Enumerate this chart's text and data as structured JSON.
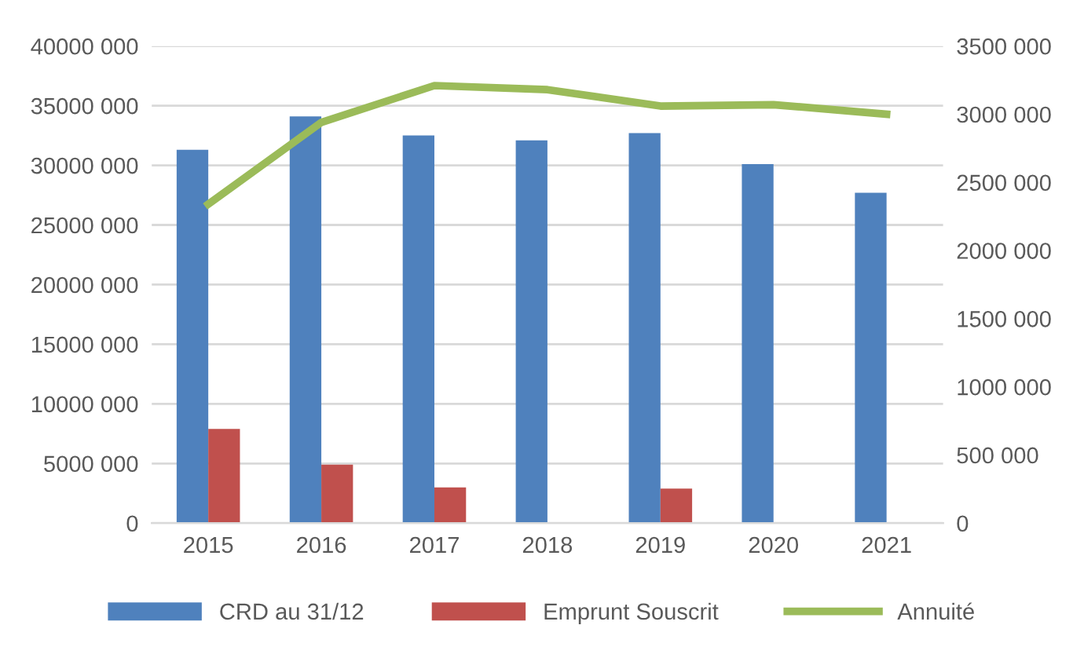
{
  "chart_data": {
    "type": "bar",
    "categories": [
      "2015",
      "2016",
      "2017",
      "2018",
      "2019",
      "2020",
      "2021"
    ],
    "series": [
      {
        "name": "CRD au 31/12",
        "color": "#4f81bd",
        "values": [
          31300000,
          34100000,
          32500000,
          32100000,
          32700000,
          30100000,
          27700000
        ]
      },
      {
        "name": "Emprunt Souscrit",
        "color": "#c0504d",
        "values": [
          7900000,
          4900000,
          3000000,
          null,
          2900000,
          null,
          null
        ]
      },
      {
        "name": "Annuité",
        "type": "line",
        "axis": "y2",
        "color": "#9bbb59",
        "values": [
          2340000,
          2940000,
          3210000,
          3180000,
          3060000,
          3070000,
          3000000
        ]
      }
    ],
    "ylim": [
      0,
      40000000
    ],
    "yticks": [
      0,
      {
        "value": 5000000,
        "label": "5000 000"
      },
      {
        "value": 10000000,
        "label": "10000 000"
      },
      {
        "value": 15000000,
        "label": "15000 000"
      },
      {
        "value": 20000000,
        "label": "20000 000"
      },
      {
        "value": 25000000,
        "label": "25000 000"
      },
      {
        "value": 30000000,
        "label": "30000 000"
      },
      {
        "value": 35000000,
        "label": "35000 000"
      },
      {
        "value": 40000000,
        "label": "40000 000"
      }
    ],
    "y2lim": [
      0,
      3500000
    ],
    "y2ticks": [
      0,
      {
        "value": 500000,
        "label": "500 000"
      },
      {
        "value": 1000000,
        "label": "1000 000"
      },
      {
        "value": 1500000,
        "label": "1500 000"
      },
      {
        "value": 2000000,
        "label": "2000 000"
      },
      {
        "value": 2500000,
        "label": "2500 000"
      },
      {
        "value": 3000000,
        "label": "3000 000"
      },
      {
        "value": 3500000,
        "label": "3500 000"
      }
    ],
    "grid": "y",
    "legend": "bottom",
    "marker": "none"
  }
}
